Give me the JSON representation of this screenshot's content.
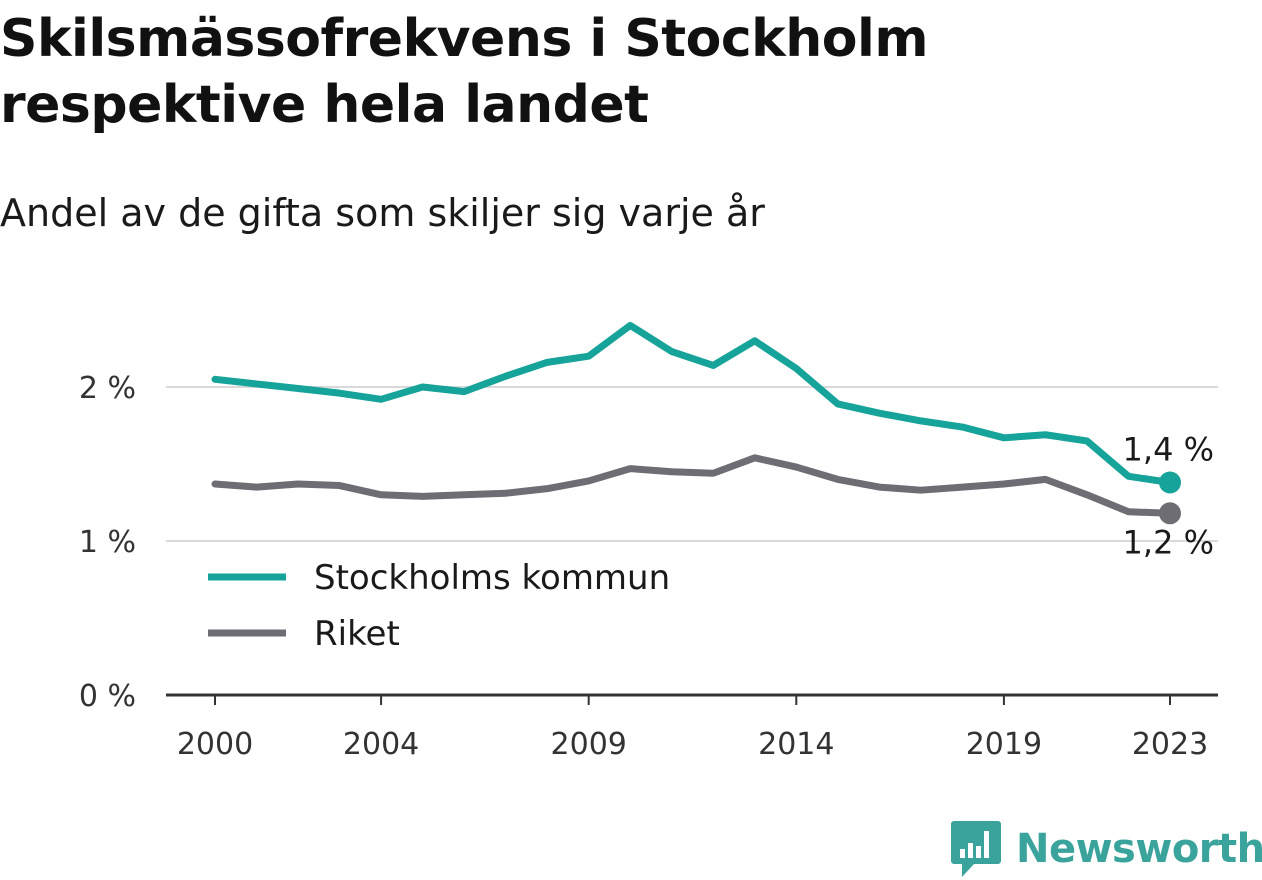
{
  "header": {
    "title": "Skilsmässofrekvens i Stockholm respektive hela landet",
    "subtitle": "Andel av de gifta som skiljer sig varje år"
  },
  "logo": {
    "text": "Newsworthy",
    "color": "#3aa39c"
  },
  "chart_data": {
    "type": "line",
    "title": "Skilsmässofrekvens i Stockholm respektive hela landet",
    "subtitle": "Andel av de gifta som skiljer sig varje år",
    "xlabel": "",
    "ylabel": "",
    "x": [
      2000,
      2001,
      2002,
      2003,
      2004,
      2005,
      2006,
      2007,
      2008,
      2009,
      2010,
      2011,
      2012,
      2013,
      2014,
      2015,
      2016,
      2017,
      2018,
      2019,
      2020,
      2021,
      2022,
      2023
    ],
    "x_ticks": [
      2000,
      2004,
      2009,
      2014,
      2019,
      2023
    ],
    "x_tick_labels": [
      "2000",
      "2004",
      "2009",
      "2014",
      "2019",
      "2023"
    ],
    "xlim": [
      2000,
      2023
    ],
    "ylim": [
      0,
      2.5
    ],
    "y_ticks": [
      0,
      1,
      2
    ],
    "y_tick_labels": [
      "0 %",
      "1 %",
      "2 %"
    ],
    "grid": "horizontal",
    "legend_position": "bottom-left",
    "series": [
      {
        "name": "Stockholms kommun",
        "color": "#16a39a",
        "values": [
          2.05,
          2.02,
          1.99,
          1.96,
          1.92,
          2.0,
          1.97,
          2.07,
          2.16,
          2.2,
          2.4,
          2.23,
          2.14,
          2.3,
          2.12,
          1.89,
          1.83,
          1.78,
          1.74,
          1.67,
          1.69,
          1.65,
          1.42,
          1.38
        ],
        "end_label": "1,4 %"
      },
      {
        "name": "Riket",
        "color": "#6e6d73",
        "values": [
          1.37,
          1.35,
          1.37,
          1.36,
          1.3,
          1.29,
          1.3,
          1.31,
          1.34,
          1.39,
          1.47,
          1.45,
          1.44,
          1.54,
          1.48,
          1.4,
          1.35,
          1.33,
          1.35,
          1.37,
          1.4,
          1.3,
          1.19,
          1.18
        ],
        "end_label": "1,2 %"
      }
    ]
  }
}
